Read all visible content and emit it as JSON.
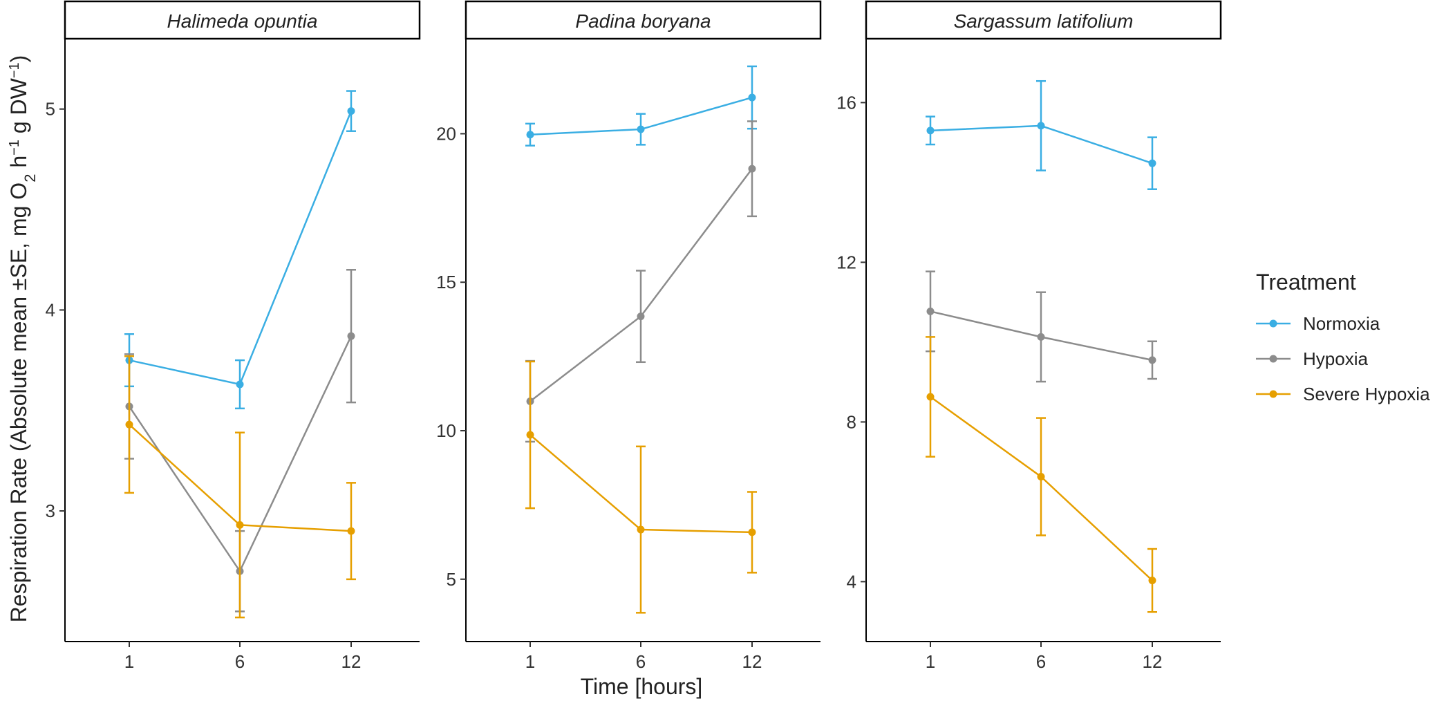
{
  "chart_data": {
    "type": "line",
    "x": [
      1,
      6,
      12
    ],
    "x_tick_labels": [
      "1",
      "6",
      "12"
    ],
    "xlabel": "Time [hours]",
    "ylabel_parts": {
      "main": "Respiration Rate (Absolute mean ±SE, mg O",
      "sub2": "2",
      "h": " h",
      "sup1": "−1",
      "g": " g DW",
      "sup2": "−1",
      "close": ")"
    },
    "legend": {
      "title": "Treatment",
      "position": "right",
      "entries": [
        "Normoxia",
        "Hypoxia",
        "Severe Hypoxia"
      ]
    },
    "colors": {
      "Normoxia": "#3AAEE3",
      "Hypoxia": "#8C8C8C",
      "Severe Hypoxia": "#E69F00"
    },
    "panels": [
      {
        "title": "Halimeda opuntia",
        "ylim": [
          2.35,
          5.35
        ],
        "yticks": [
          3,
          4,
          5
        ],
        "series": [
          {
            "name": "Normoxia",
            "values": [
              3.75,
              3.63,
              4.99
            ],
            "se": [
              0.13,
              0.12,
              0.1
            ]
          },
          {
            "name": "Hypoxia",
            "values": [
              3.52,
              2.7,
              3.87
            ],
            "se": [
              0.26,
              0.2,
              0.33
            ]
          },
          {
            "name": "Severe Hypoxia",
            "values": [
              3.43,
              2.93,
              2.9
            ],
            "se": [
              0.34,
              0.46,
              0.24
            ]
          }
        ]
      },
      {
        "title": "Padina boryana",
        "ylim": [
          2.9,
          23.2
        ],
        "yticks": [
          5,
          10,
          15,
          20
        ],
        "series": [
          {
            "name": "Normoxia",
            "values": [
              19.97,
              20.15,
              21.22
            ],
            "se": [
              0.37,
              0.52,
              1.05
            ]
          },
          {
            "name": "Hypoxia",
            "values": [
              10.99,
              13.85,
              18.82
            ],
            "se": [
              1.36,
              1.54,
              1.6
            ]
          },
          {
            "name": "Severe Hypoxia",
            "values": [
              9.86,
              6.67,
              6.58
            ],
            "se": [
              2.47,
              2.8,
              1.36
            ]
          }
        ]
      },
      {
        "title": "Sargassum latifolium",
        "ylim": [
          2.5,
          17.6
        ],
        "yticks": [
          4,
          8,
          12,
          16
        ],
        "series": [
          {
            "name": "Normoxia",
            "values": [
              15.3,
              15.42,
              14.48
            ],
            "se": [
              0.35,
              1.12,
              0.65
            ]
          },
          {
            "name": "Hypoxia",
            "values": [
              10.77,
              10.13,
              9.55
            ],
            "se": [
              1.0,
              1.12,
              0.47
            ]
          },
          {
            "name": "Severe Hypoxia",
            "values": [
              8.63,
              6.63,
              4.03
            ],
            "se": [
              1.5,
              1.47,
              0.79
            ]
          }
        ]
      }
    ]
  }
}
